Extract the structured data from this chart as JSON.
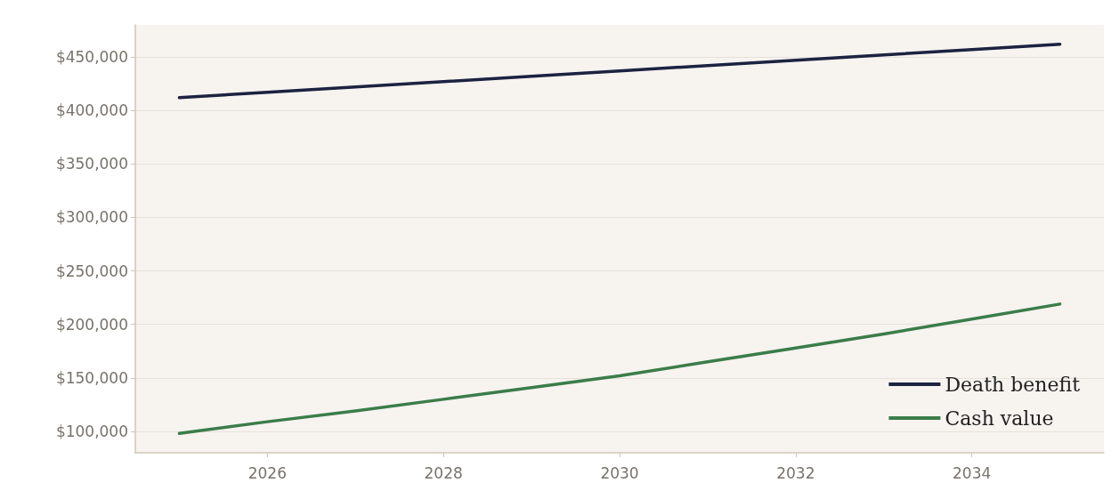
{
  "chart_data": {
    "type": "line",
    "x": [
      2025,
      2026,
      2027,
      2028,
      2029,
      2030,
      2031,
      2032,
      2033,
      2034,
      2035
    ],
    "series": [
      {
        "name": "Death benefit",
        "color": "#1c2340",
        "values": [
          412000,
          417000,
          422000,
          427000,
          432000,
          437000,
          442000,
          447000,
          452000,
          457000,
          462000
        ]
      },
      {
        "name": "Cash value",
        "color": "#3a7d4a",
        "values": [
          98000,
          109000,
          119000,
          130000,
          141000,
          152000,
          165000,
          178000,
          191000,
          205000,
          219000
        ]
      }
    ],
    "xlim": [
      2024.5,
      2035.5
    ],
    "xticks": [
      2026,
      2028,
      2030,
      2032,
      2034
    ],
    "ylim": [
      80000,
      480000
    ],
    "yticks": [
      {
        "value": 100000,
        "label": "$100,000"
      },
      {
        "value": 150000,
        "label": "$150,000"
      },
      {
        "value": 200000,
        "label": "$200,000"
      },
      {
        "value": 250000,
        "label": "$250,000"
      },
      {
        "value": 300000,
        "label": "$300,000"
      },
      {
        "value": 350000,
        "label": "$350,000"
      },
      {
        "value": 400000,
        "label": "$400,000"
      },
      {
        "value": 450000,
        "label": "$450,000"
      }
    ],
    "grid": "y",
    "legend": "bottom right",
    "marker": "none",
    "line_style": "solid"
  }
}
